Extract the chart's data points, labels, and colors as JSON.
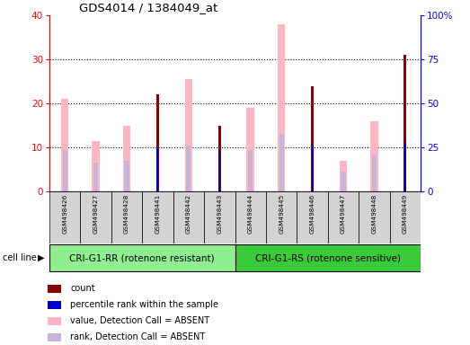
{
  "title": "GDS4014 / 1384049_at",
  "samples": [
    "GSM498426",
    "GSM498427",
    "GSM498428",
    "GSM498441",
    "GSM498442",
    "GSM498443",
    "GSM498444",
    "GSM498445",
    "GSM498446",
    "GSM498447",
    "GSM498448",
    "GSM498449"
  ],
  "count": [
    0,
    0,
    0,
    22,
    0,
    15,
    0,
    0,
    24,
    0,
    0,
    31
  ],
  "percentile_rank": [
    0,
    0,
    0,
    10,
    0,
    9.5,
    0,
    0,
    10.5,
    0,
    0,
    11
  ],
  "value_absent": [
    21,
    11.5,
    15,
    0,
    25.5,
    0,
    19,
    38,
    0,
    7,
    16,
    0
  ],
  "rank_absent": [
    9.5,
    6.5,
    7,
    0,
    10.5,
    0,
    9.5,
    13,
    0,
    4.5,
    8.5,
    0
  ],
  "group1_label": "CRI-G1-RR (rotenone resistant)",
  "group2_label": "CRI-G1-RS (rotenone sensitive)",
  "group1_color": "#90EE90",
  "group2_color": "#3ACA3A",
  "ylim_left": [
    0,
    40
  ],
  "ylim_right": [
    0,
    100
  ],
  "yticks_left": [
    0,
    10,
    20,
    30,
    40
  ],
  "yticks_right": [
    0,
    25,
    50,
    75,
    100
  ],
  "ytick_labels_right": [
    "0",
    "25",
    "50",
    "75",
    "100%"
  ],
  "color_count": "#8B0000",
  "color_percentile": "#0000CD",
  "color_value_absent": "#FFB6C1",
  "color_rank_absent": "#C8B4D8",
  "cell_line_label": "cell line",
  "legend_items": [
    {
      "color": "#8B0000",
      "label": "count"
    },
    {
      "color": "#0000CD",
      "label": "percentile rank within the sample"
    },
    {
      "color": "#FFB6C1",
      "label": "value, Detection Call = ABSENT"
    },
    {
      "color": "#C8B4D8",
      "label": "rank, Detection Call = ABSENT"
    }
  ],
  "bg_color": "#D3D3D3",
  "plot_bg": "#FFFFFF"
}
